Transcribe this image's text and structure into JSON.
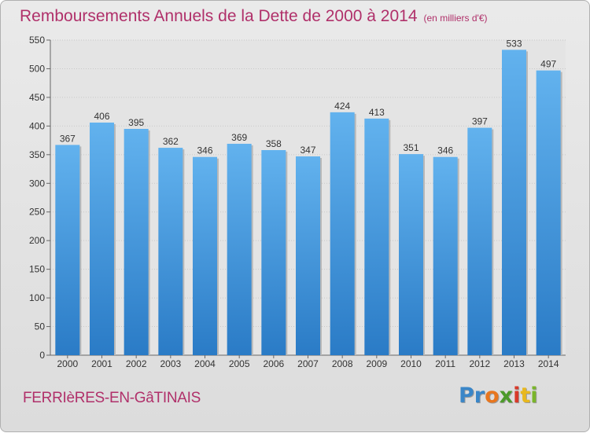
{
  "chart_data": {
    "type": "bar",
    "title": "Remboursements Annuels de la Dette de 2000 à 2014",
    "unit": "(en milliers d'€)",
    "categories": [
      "2000",
      "2001",
      "2002",
      "2003",
      "2004",
      "2005",
      "2006",
      "2007",
      "2008",
      "2009",
      "2010",
      "2011",
      "2012",
      "2013",
      "2014"
    ],
    "values": [
      367,
      406,
      395,
      362,
      346,
      369,
      358,
      347,
      424,
      413,
      351,
      346,
      397,
      533,
      497
    ],
    "ylim": [
      0,
      550
    ],
    "yticks": [
      0,
      50,
      100,
      150,
      200,
      250,
      300,
      350,
      400,
      450,
      500,
      550
    ],
    "grid": true,
    "bar_color": "#3a8fd8"
  },
  "footer": {
    "city": "FERRIèRES-EN-GâTINAIS",
    "logo": [
      "Pr",
      "o",
      "x",
      "i",
      "t",
      "i"
    ]
  }
}
